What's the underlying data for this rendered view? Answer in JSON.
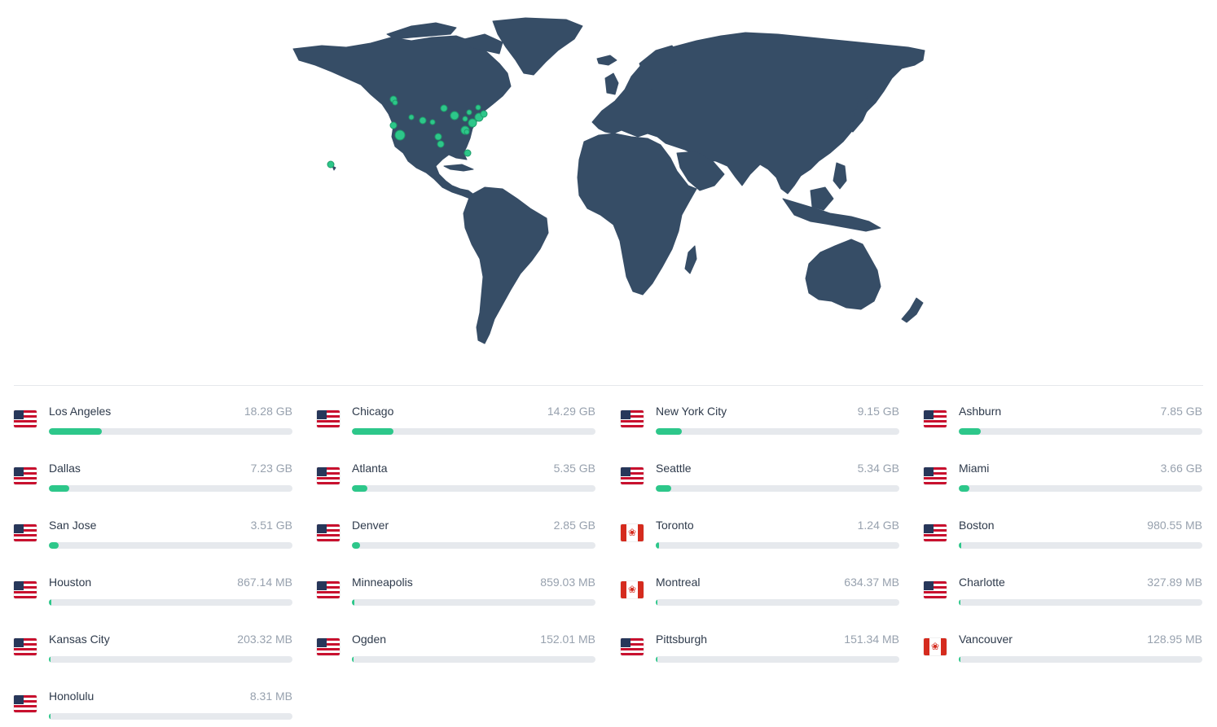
{
  "colors": {
    "land": "#364d66",
    "marker": "#2dc78a",
    "bar_fill": "#2dc78a",
    "bar_track": "#e6e9ed"
  },
  "cities": [
    {
      "name": "Los Angeles",
      "value": "18.28 GB",
      "flag": "us",
      "share": 0.216
    },
    {
      "name": "Chicago",
      "value": "14.29 GB",
      "flag": "us",
      "share": 0.172
    },
    {
      "name": "New York City",
      "value": "9.15 GB",
      "flag": "us",
      "share": 0.106
    },
    {
      "name": "Ashburn",
      "value": "7.85 GB",
      "flag": "us",
      "share": 0.091
    },
    {
      "name": "Dallas",
      "value": "7.23 GB",
      "flag": "us",
      "share": 0.085
    },
    {
      "name": "Atlanta",
      "value": "5.35 GB",
      "flag": "us",
      "share": 0.063
    },
    {
      "name": "Seattle",
      "value": "5.34 GB",
      "flag": "us",
      "share": 0.063
    },
    {
      "name": "Miami",
      "value": "3.66 GB",
      "flag": "us",
      "share": 0.043
    },
    {
      "name": "San Jose",
      "value": "3.51 GB",
      "flag": "us",
      "share": 0.04
    },
    {
      "name": "Denver",
      "value": "2.85 GB",
      "flag": "us",
      "share": 0.033
    },
    {
      "name": "Toronto",
      "value": "1.24 GB",
      "flag": "ca",
      "share": 0.014
    },
    {
      "name": "Boston",
      "value": "980.55 MB",
      "flag": "us",
      "share": 0.011
    },
    {
      "name": "Houston",
      "value": "867.14 MB",
      "flag": "us",
      "share": 0.01
    },
    {
      "name": "Minneapolis",
      "value": "859.03 MB",
      "flag": "us",
      "share": 0.01
    },
    {
      "name": "Montreal",
      "value": "634.37 MB",
      "flag": "ca",
      "share": 0.008
    },
    {
      "name": "Charlotte",
      "value": "327.89 MB",
      "flag": "us",
      "share": 0.005
    },
    {
      "name": "Kansas City",
      "value": "203.32 MB",
      "flag": "us",
      "share": 0.004
    },
    {
      "name": "Ogden",
      "value": "152.01 MB",
      "flag": "us",
      "share": 0.003
    },
    {
      "name": "Pittsburgh",
      "value": "151.34 MB",
      "flag": "us",
      "share": 0.003
    },
    {
      "name": "Vancouver",
      "value": "128.95 MB",
      "flag": "ca",
      "share": 0.003
    },
    {
      "name": "Honolulu",
      "value": "8.31 MB",
      "flag": "us",
      "share": 0.001
    }
  ]
}
